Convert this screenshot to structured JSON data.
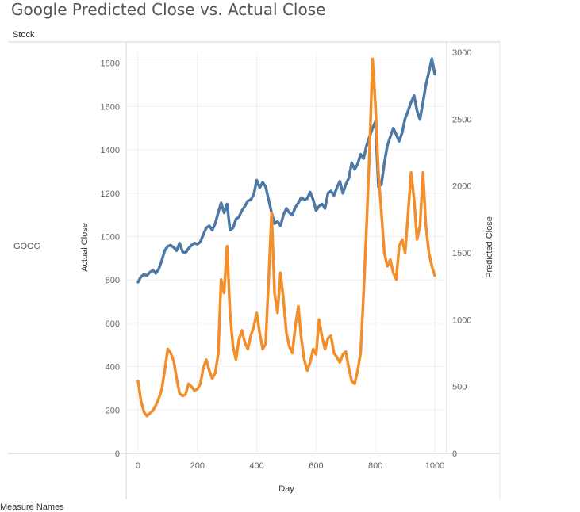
{
  "chart_data": {
    "type": "line",
    "title": "Google Predicted Close vs. Actual Close",
    "column_header": "Stock",
    "row_label": "GOOG",
    "xlabel": "Day",
    "ylabel_left": "Actual Close",
    "ylabel_right": "Predicted Close",
    "legend_title": "Measure Names",
    "xlim": [
      -40,
      1040
    ],
    "ylim_left": [
      0,
      1850
    ],
    "ylim_right": [
      0,
      3000
    ],
    "x_ticks": [
      0,
      200,
      400,
      600,
      800,
      1000
    ],
    "y_left_ticks": [
      0,
      200,
      400,
      600,
      800,
      1000,
      1200,
      1400,
      1600,
      1800
    ],
    "y_right_ticks": [
      0,
      500,
      1000,
      1500,
      2000,
      2500,
      3000
    ],
    "grid": true,
    "series": [
      {
        "axis": "left",
        "color": "#4e79a7",
        "x": [
          0,
          10,
          20,
          30,
          40,
          50,
          60,
          70,
          80,
          90,
          100,
          110,
          120,
          130,
          140,
          150,
          160,
          170,
          180,
          190,
          200,
          210,
          220,
          230,
          240,
          250,
          260,
          270,
          280,
          290,
          300,
          310,
          320,
          330,
          340,
          350,
          360,
          370,
          380,
          390,
          400,
          410,
          420,
          430,
          440,
          450,
          460,
          470,
          480,
          490,
          500,
          510,
          520,
          530,
          540,
          550,
          560,
          570,
          580,
          590,
          600,
          610,
          620,
          630,
          640,
          650,
          660,
          670,
          680,
          690,
          700,
          710,
          720,
          730,
          740,
          750,
          760,
          770,
          780,
          790,
          800,
          810,
          820,
          830,
          840,
          850,
          860,
          870,
          880,
          890,
          900,
          910,
          920,
          930,
          940,
          950,
          960,
          970,
          980,
          990,
          1000
        ],
        "values": [
          790,
          815,
          825,
          820,
          835,
          845,
          830,
          850,
          890,
          935,
          955,
          960,
          950,
          935,
          970,
          930,
          925,
          945,
          960,
          970,
          965,
          975,
          1010,
          1040,
          1050,
          1030,
          1060,
          1110,
          1155,
          1110,
          1150,
          1030,
          1040,
          1080,
          1090,
          1120,
          1140,
          1165,
          1170,
          1195,
          1260,
          1225,
          1250,
          1230,
          1170,
          1110,
          1060,
          1070,
          1050,
          1100,
          1130,
          1110,
          1100,
          1135,
          1155,
          1180,
          1170,
          1175,
          1205,
          1170,
          1120,
          1140,
          1150,
          1130,
          1200,
          1210,
          1190,
          1225,
          1255,
          1200,
          1240,
          1270,
          1340,
          1310,
          1335,
          1380,
          1360,
          1420,
          1460,
          1500,
          1530,
          1230,
          1240,
          1340,
          1420,
          1460,
          1500,
          1470,
          1440,
          1480,
          1545,
          1580,
          1620,
          1650,
          1580,
          1540,
          1620,
          1700,
          1760,
          1820,
          1750
        ]
      },
      {
        "axis": "right",
        "color": "#f28e2b",
        "x": [
          0,
          10,
          20,
          30,
          40,
          50,
          60,
          70,
          80,
          90,
          100,
          110,
          120,
          130,
          140,
          150,
          160,
          170,
          180,
          190,
          200,
          210,
          220,
          230,
          240,
          250,
          260,
          270,
          280,
          290,
          300,
          310,
          320,
          330,
          340,
          350,
          360,
          370,
          380,
          390,
          400,
          410,
          420,
          430,
          440,
          450,
          460,
          470,
          480,
          490,
          500,
          510,
          520,
          530,
          540,
          550,
          560,
          570,
          580,
          590,
          600,
          610,
          620,
          630,
          640,
          650,
          660,
          670,
          680,
          690,
          700,
          710,
          720,
          730,
          740,
          750,
          760,
          770,
          780,
          790,
          800,
          810,
          820,
          830,
          840,
          850,
          860,
          870,
          880,
          890,
          900,
          910,
          920,
          930,
          940,
          950,
          960,
          970,
          980,
          990,
          1000
        ],
        "values": [
          540,
          390,
          310,
          280,
          300,
          320,
          360,
          410,
          480,
          620,
          780,
          750,
          690,
          560,
          450,
          430,
          440,
          520,
          500,
          470,
          480,
          520,
          640,
          700,
          620,
          560,
          600,
          740,
          1300,
          1200,
          1550,
          1050,
          800,
          700,
          850,
          920,
          830,
          780,
          880,
          950,
          1050,
          900,
          780,
          820,
          1300,
          1800,
          1200,
          1050,
          1350,
          1150,
          900,
          800,
          750,
          950,
          1100,
          860,
          700,
          620,
          680,
          780,
          740,
          1000,
          870,
          780,
          860,
          880,
          750,
          720,
          680,
          740,
          760,
          640,
          540,
          520,
          620,
          750,
          1200,
          1700,
          2250,
          2950,
          2600,
          2100,
          1800,
          1500,
          1400,
          1450,
          1350,
          1300,
          1550,
          1600,
          1500,
          1800,
          2100,
          1900,
          1600,
          1700,
          2100,
          1700,
          1500,
          1400,
          1330
        ]
      }
    ]
  }
}
